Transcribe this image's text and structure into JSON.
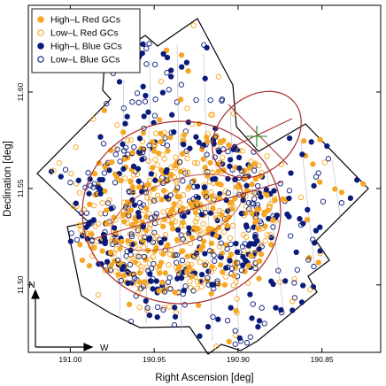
{
  "chart_data": {
    "type": "scatter",
    "title": "",
    "xlabel": "Right Ascension [deg]",
    "ylabel": "Declination [deg]",
    "xlim": [
      191.025,
      190.815
    ],
    "ylim": [
      11.465,
      11.645
    ],
    "x_inverted": true,
    "xticks": [
      "191.00",
      "190.95",
      "190.90",
      "190.85"
    ],
    "yticks": [
      "11.50",
      "11.55",
      "11.60"
    ],
    "xtick_values": [
      191.0,
      190.95,
      190.9,
      190.85
    ],
    "ytick_values": [
      11.5,
      11.55,
      11.6
    ],
    "grid": false,
    "legend_position": "top-left",
    "colors": {
      "red": "#f5a623",
      "blue": "#0b1b7a",
      "ellipse": "#a52a2a",
      "cross": "#3c9a3c"
    },
    "series": [
      {
        "name": "High–L Red GCs",
        "marker": "filled",
        "color": "#f5a623"
      },
      {
        "name": "Low–L Red GCs",
        "marker": "open",
        "color": "#f5a623"
      },
      {
        "name": "High–L Blue GCs",
        "marker": "filled",
        "color": "#0b1b7a"
      },
      {
        "name": "Low–L Blue GCs",
        "marker": "open",
        "color": "#0b1b7a"
      }
    ],
    "compass": {
      "north": "N",
      "west": "W"
    }
  }
}
